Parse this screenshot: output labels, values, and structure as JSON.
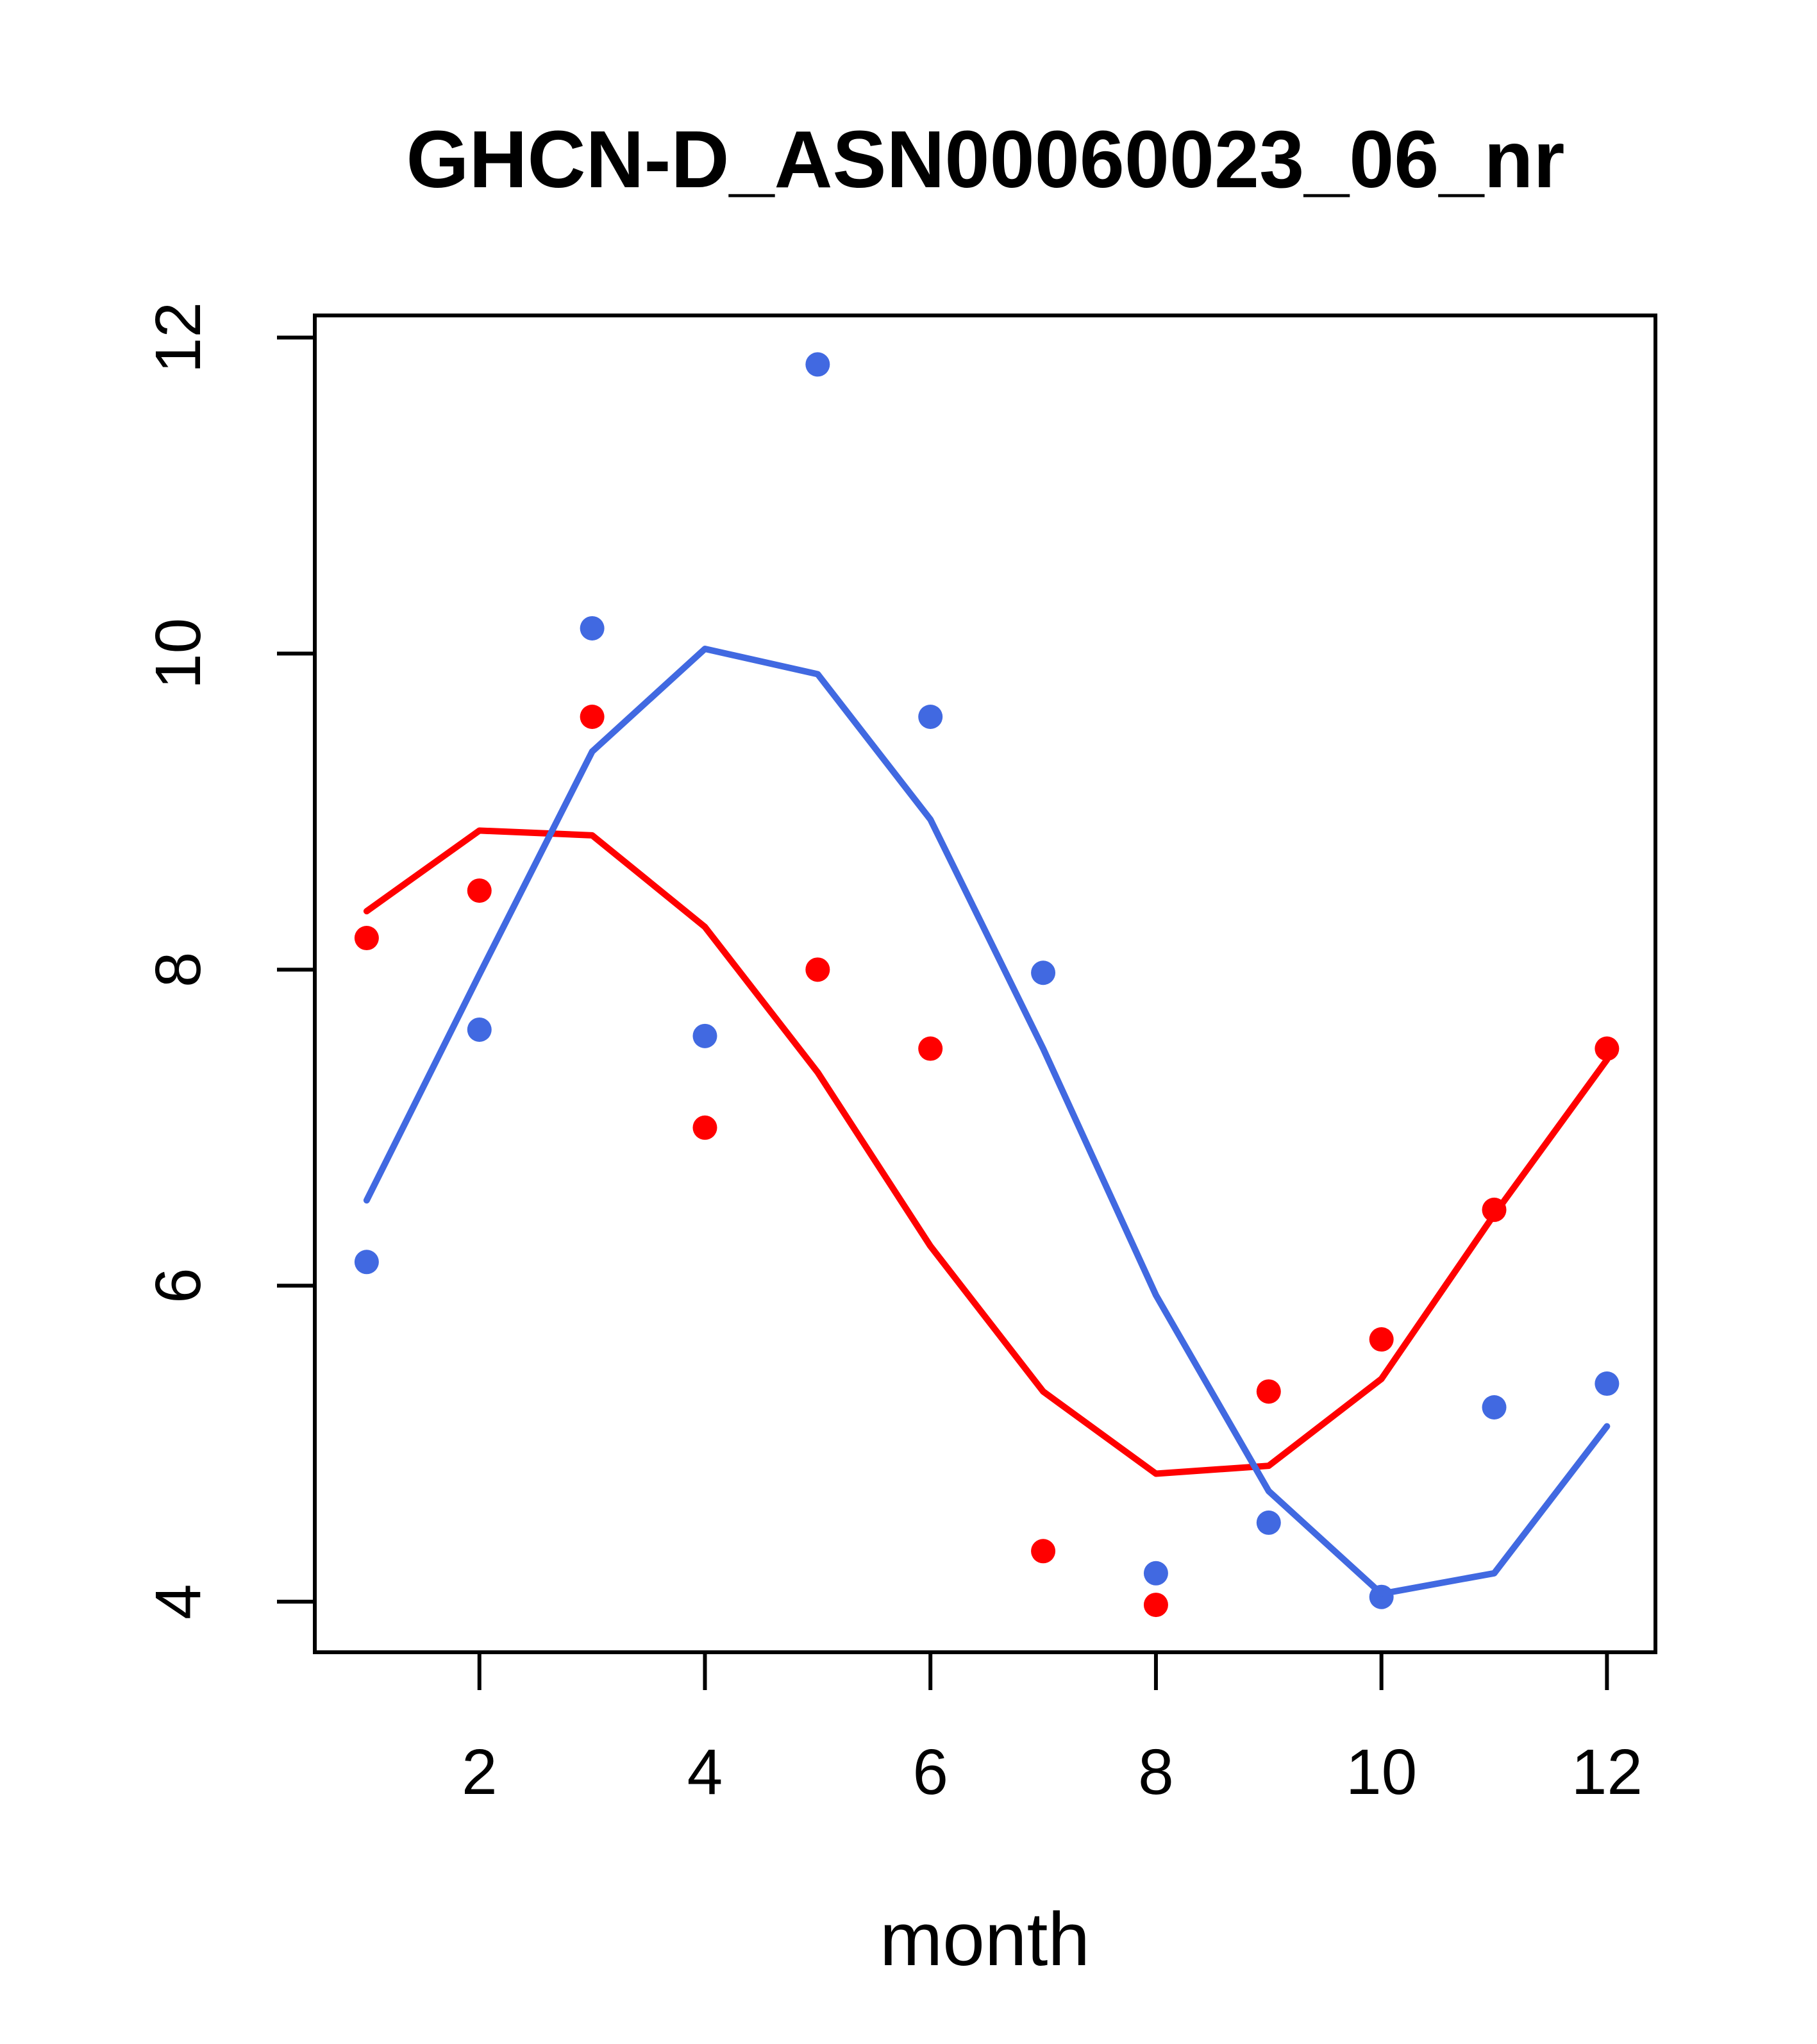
{
  "title": "GHCN-D_ASN00060023_06_nr",
  "chart_data": {
    "type": "scatter",
    "title": "GHCN-D_ASN00060023_06_nr",
    "xlabel": "month",
    "ylabel": "",
    "x": [
      1,
      2,
      3,
      4,
      5,
      6,
      7,
      8,
      9,
      10,
      11,
      12
    ],
    "x_ticks": [
      2,
      4,
      6,
      8,
      10,
      12
    ],
    "y_ticks": [
      4,
      6,
      8,
      10,
      12
    ],
    "xlim": [
      0.54,
      12.43
    ],
    "ylim": [
      3.68,
      12.14
    ],
    "grid": false,
    "legend": "none",
    "series": [
      {
        "name": "red-points",
        "role": "points",
        "color": "#FF0000",
        "values": [
          8.2,
          8.5,
          9.6,
          7.0,
          8.0,
          7.5,
          4.32,
          3.98,
          5.33,
          5.66,
          6.48,
          7.5
        ]
      },
      {
        "name": "red-smooth-line",
        "role": "line",
        "color": "#FF0000",
        "values": [
          8.37,
          8.88,
          8.85,
          8.27,
          7.35,
          6.25,
          5.33,
          4.81,
          4.86,
          5.41,
          6.45,
          7.43
        ]
      },
      {
        "name": "blue-points",
        "role": "points",
        "color": "#4169E1",
        "values": [
          6.15,
          7.62,
          10.16,
          7.58,
          11.83,
          9.6,
          7.98,
          4.18,
          4.5,
          4.03,
          5.23,
          5.38
        ]
      },
      {
        "name": "blue-smooth-line",
        "role": "line",
        "color": "#4169E1",
        "values": [
          6.54,
          7.97,
          9.38,
          10.03,
          9.87,
          8.95,
          7.5,
          5.94,
          4.7,
          4.05,
          4.18,
          5.11
        ]
      }
    ]
  }
}
